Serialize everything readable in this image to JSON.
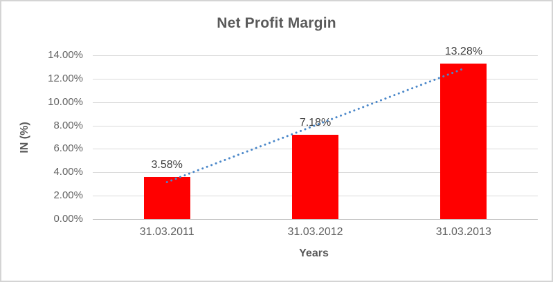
{
  "chart_data": {
    "type": "bar",
    "title": "Net Profit Margin",
    "xlabel": "Years",
    "ylabel": "IN (%)",
    "categories": [
      "31.03.2011",
      "31.03.2012",
      "31.03.2013"
    ],
    "values": [
      3.58,
      7.18,
      13.28
    ],
    "data_labels": [
      "3.58%",
      "7.18%",
      "13.28%"
    ],
    "ylim": [
      0,
      14
    ],
    "ytick_step": 2,
    "ytick_labels": [
      "0.00%",
      "2.00%",
      "4.00%",
      "6.00%",
      "8.00%",
      "10.00%",
      "12.00%",
      "14.00%"
    ],
    "grid": true,
    "legend": "none",
    "bar_color": "#ff0000",
    "trendline": {
      "type": "linear",
      "style": "dotted",
      "color": "#4a87c9",
      "start_value": 3.16,
      "end_value": 12.86
    }
  },
  "colors": {
    "title_text": "#595959",
    "axis_text": "#636363",
    "gridline": "#d9d9d9",
    "axis_line": "#c6c6c6",
    "background": "#ffffff",
    "frame_border": "#d4d4d4"
  }
}
